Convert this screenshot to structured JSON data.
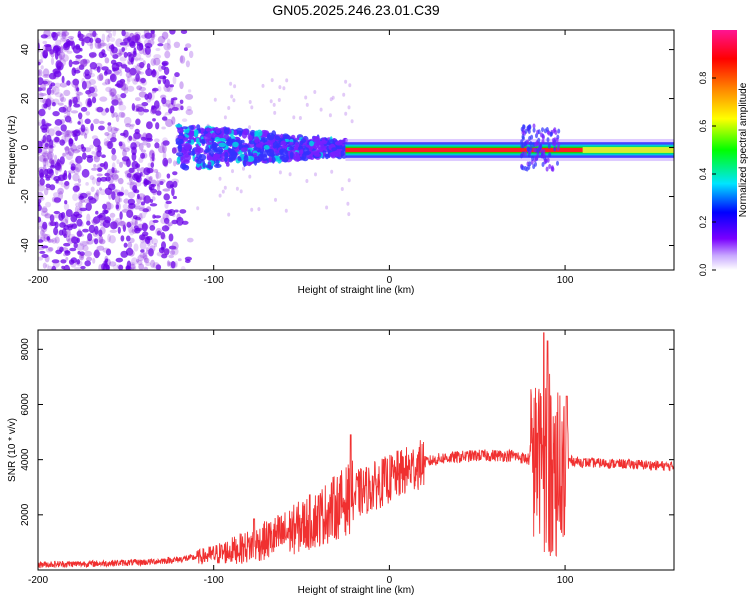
{
  "title": "GN05.2025.246.23.01.C39",
  "chart_data": [
    {
      "type": "heatmap",
      "title": "GN05.2025.246.23.01.C39",
      "xlabel": "Height of straight line (km)",
      "ylabel": "Frequency (Hz)",
      "xlim": [
        -200,
        162
      ],
      "ylim": [
        -50,
        48
      ],
      "xticks": [
        -200,
        -100,
        0,
        100
      ],
      "yticks": [
        -40,
        -20,
        0,
        20,
        40
      ],
      "colorbar": {
        "label": "Normalized spectral amplitude",
        "range": [
          0,
          1
        ],
        "ticks": [
          "0.0",
          "0.2",
          "0.4",
          "0.6",
          "0.8"
        ],
        "stops": [
          "#ffffff",
          "#7a00ff",
          "#0000ff",
          "#00e5ff",
          "#00ff00",
          "#ffff00",
          "#ff8000",
          "#ff0000",
          "#ff1493"
        ]
      },
      "regions": [
        {
          "x": [
            -200,
            -120
          ],
          "f": [
            -50,
            48
          ],
          "amplitude": 0.1,
          "pattern": "scattered noise"
        },
        {
          "x": [
            -120,
            -25
          ],
          "f": [
            -8,
            8
          ],
          "amplitude": 0.3,
          "pattern": "broad band"
        },
        {
          "x": [
            -25,
            162
          ],
          "f": [
            -2,
            2
          ],
          "amplitude": 0.9,
          "pattern": "narrow line"
        }
      ],
      "colors": {
        "line": "#ff0000",
        "noise": "#8a2be2",
        "band": "#3333ff",
        "core": "#00d5e5"
      }
    },
    {
      "type": "line",
      "xlabel": "Height of straight line (km)",
      "ylabel": "SNR (10 * v/v)",
      "xlim": [
        -200,
        162
      ],
      "ylim": [
        0,
        8700
      ],
      "xticks": [
        -200,
        -100,
        0,
        100
      ],
      "yticks": [
        2000,
        4000,
        6000,
        8000
      ],
      "series": [
        {
          "name": "SNR",
          "color": "#f03030",
          "x": [
            -200,
            -170,
            -140,
            -120,
            -100,
            -80,
            -60,
            -40,
            -30,
            -20,
            -10,
            0,
            10,
            20,
            30,
            40,
            50,
            60,
            70,
            80,
            85,
            90,
            95,
            100,
            110,
            130,
            150,
            162
          ],
          "values": [
            200,
            230,
            280,
            380,
            550,
            850,
            1300,
            1900,
            2300,
            2700,
            3000,
            3300,
            3600,
            3900,
            4050,
            4100,
            4150,
            4150,
            4150,
            4000,
            4000,
            4500,
            4000,
            4000,
            3900,
            3850,
            3800,
            3750
          ],
          "spikes": [
            {
              "x": -77,
              "peak": 1850
            },
            {
              "x": -22,
              "peak": 4900
            },
            {
              "x": 88,
              "peak": 8600
            },
            {
              "x": 90,
              "peak": 8300
            },
            {
              "x": 101,
              "peak": 6300
            }
          ]
        }
      ]
    }
  ]
}
